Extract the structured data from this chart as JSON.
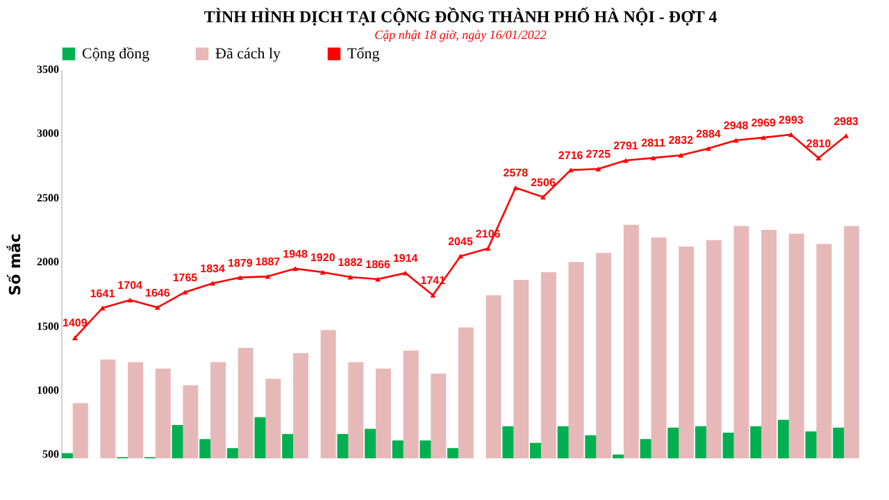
{
  "chart_data": {
    "type": "bar",
    "title": "TÌNH HÌNH DỊCH TẠI CỘNG ĐỒNG THÀNH PHỐ HÀ NỘI - ĐỢT 4",
    "subtitle": "Cập nhật 18 giờ, ngày 16/01/2022",
    "ylabel": "Số mắc",
    "categories": [
      null,
      null,
      null,
      null,
      null,
      null,
      null,
      null,
      null,
      null,
      null,
      null,
      null,
      null,
      null,
      null,
      null,
      null,
      null,
      null,
      null,
      null,
      null,
      null,
      null,
      null,
      null,
      null,
      null
    ],
    "series": [
      {
        "name": "Cộng đồng",
        "color": "#00b050",
        "values": [
          510,
          null,
          480,
          480,
          730,
          620,
          550,
          790,
          660,
          null,
          660,
          700,
          610,
          610,
          550,
          null,
          720,
          590,
          720,
          650,
          500,
          620,
          710,
          720,
          670,
          720,
          770,
          680,
          710
        ]
      },
      {
        "name": "Đã cách ly",
        "color": "#e6b9b8",
        "values": [
          900,
          1240,
          1220,
          1170,
          1040,
          1220,
          1330,
          1090,
          1290,
          1470,
          1220,
          1170,
          1310,
          1130,
          1490,
          1740,
          1860,
          1920,
          2000,
          2070,
          2290,
          2190,
          2120,
          2170,
          2280,
          2250,
          2220,
          2140,
          2280
        ]
      },
      {
        "name": "Tổng",
        "type": "line",
        "color": "#ff0000",
        "marker": "triangle",
        "values": [
          1409,
          1641,
          1704,
          1646,
          1765,
          1834,
          1879,
          1887,
          1948,
          1920,
          1882,
          1866,
          1914,
          1741,
          2045,
          2106,
          2578,
          2506,
          2716,
          2725,
          2791,
          2811,
          2832,
          2884,
          2948,
          2969,
          2993,
          2810,
          2983
        ],
        "value_labels": [
          "1409",
          "1641",
          "1704",
          "1646",
          "1765",
          "1834",
          "1879",
          "1887",
          "1948",
          "1920",
          "1882",
          "1866",
          "1914",
          "1741",
          "2045",
          "2106",
          "2578",
          "2506",
          "2716",
          "2725",
          "2791",
          "2811",
          "2832",
          "2884",
          "2948",
          "2969",
          "2993",
          "2810",
          "2983"
        ]
      }
    ],
    "ylim": [
      470,
      3500
    ],
    "yticks": [
      500,
      1000,
      1500,
      2000,
      2500,
      3000,
      3500
    ],
    "grid": false,
    "legend": "top",
    "tick_labels": "y"
  }
}
